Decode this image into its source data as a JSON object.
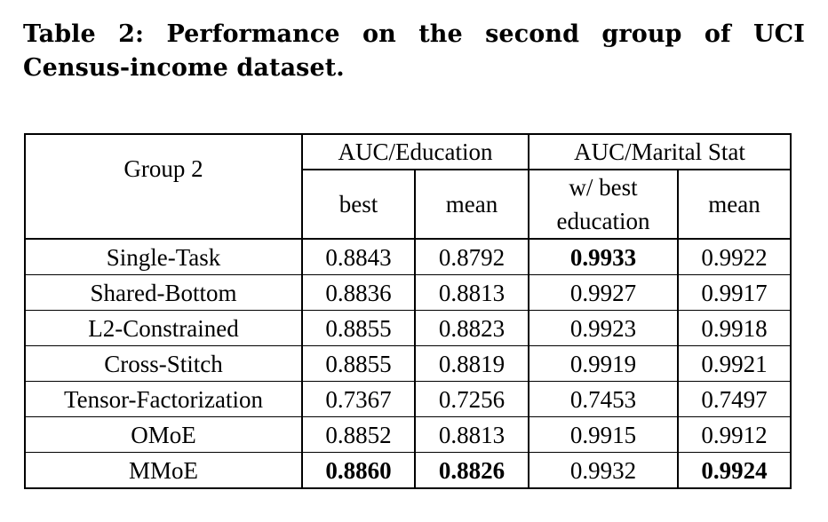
{
  "caption": {
    "label": "Table 2:",
    "text": "Performance on the second group of UCI Census-income dataset."
  },
  "table": {
    "corner_header": "Group 2",
    "group_headers": [
      "AUC/Education",
      "AUC/Marital Stat"
    ],
    "sub_headers": [
      "best",
      "mean",
      "w/ best education",
      "mean"
    ],
    "sub_header_lines": {
      "w_best": "w/ best",
      "education": "education"
    },
    "rows": [
      {
        "method": "Single-Task",
        "values": [
          "0.8843",
          "0.8792",
          "0.9933",
          "0.9922"
        ],
        "bold": [
          false,
          false,
          true,
          false
        ]
      },
      {
        "method": "Shared-Bottom",
        "values": [
          "0.8836",
          "0.8813",
          "0.9927",
          "0.9917"
        ],
        "bold": [
          false,
          false,
          false,
          false
        ]
      },
      {
        "method": "L2-Constrained",
        "values": [
          "0.8855",
          "0.8823",
          "0.9923",
          "0.9918"
        ],
        "bold": [
          false,
          false,
          false,
          false
        ]
      },
      {
        "method": "Cross-Stitch",
        "values": [
          "0.8855",
          "0.8819",
          "0.9919",
          "0.9921"
        ],
        "bold": [
          false,
          false,
          false,
          false
        ]
      },
      {
        "method": "Tensor-Factorization",
        "values": [
          "0.7367",
          "0.7256",
          "0.7453",
          "0.7497"
        ],
        "bold": [
          false,
          false,
          false,
          false
        ]
      },
      {
        "method": "OMoE",
        "values": [
          "0.8852",
          "0.8813",
          "0.9915",
          "0.9912"
        ],
        "bold": [
          false,
          false,
          false,
          false
        ]
      },
      {
        "method": "MMoE",
        "values": [
          "0.8860",
          "0.8826",
          "0.9932",
          "0.9924"
        ],
        "bold": [
          true,
          true,
          false,
          true
        ]
      }
    ]
  }
}
